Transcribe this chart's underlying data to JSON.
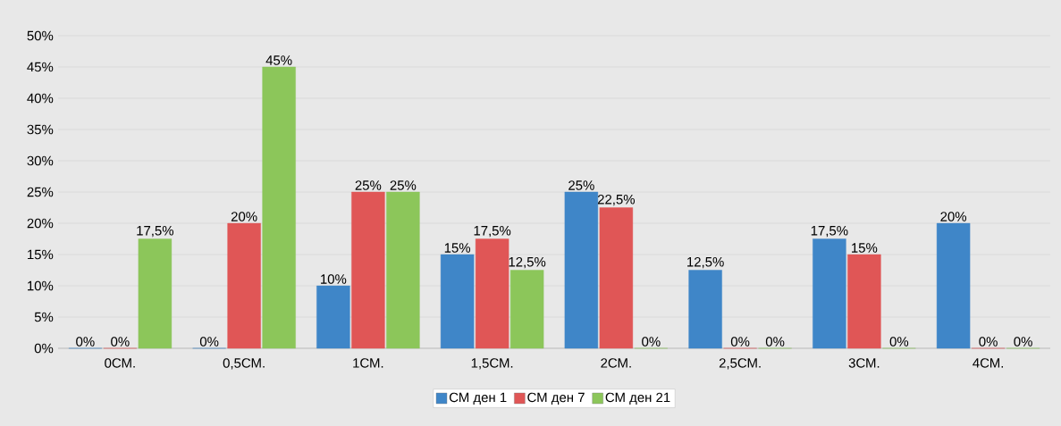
{
  "chart_data": {
    "type": "bar",
    "categories": [
      "0СМ.",
      "0,5СМ.",
      "1СМ.",
      "1,5СМ.",
      "2СМ.",
      "2,5СМ.",
      "3СМ.",
      "4СМ."
    ],
    "series": [
      {
        "name": "СМ ден 1",
        "color": "#3f86c8",
        "values": [
          0,
          0,
          10,
          15,
          25,
          12.5,
          17.5,
          20
        ],
        "value_labels": [
          "0%",
          "0%",
          "10%",
          "15%",
          "25%",
          "12,5%",
          "17,5%",
          "20%"
        ]
      },
      {
        "name": "СМ ден 7",
        "color": "#e05656",
        "values": [
          0,
          20,
          25,
          17.5,
          22.5,
          0,
          15,
          0
        ],
        "value_labels": [
          "0%",
          "20%",
          "25%",
          "17,5%",
          "22,5%",
          "0%",
          "15%",
          "0%"
        ]
      },
      {
        "name": "СМ ден 21",
        "color": "#8cc65a",
        "values": [
          17.5,
          45,
          25,
          12.5,
          0,
          0,
          0,
          0
        ],
        "value_labels": [
          "17,5%",
          "45%",
          "25%",
          "12,5%",
          "0%",
          "0%",
          "0%",
          "0%"
        ]
      }
    ],
    "ylim": [
      0,
      50
    ],
    "yticks": [
      {
        "value": 0,
        "label": "0%"
      },
      {
        "value": 5,
        "label": "5%"
      },
      {
        "value": 10,
        "label": "10%"
      },
      {
        "value": 15,
        "label": "15%"
      },
      {
        "value": 20,
        "label": "20%"
      },
      {
        "value": 25,
        "label": "25%"
      },
      {
        "value": 30,
        "label": "30%"
      },
      {
        "value": 35,
        "label": "35%"
      },
      {
        "value": 40,
        "label": "40%"
      },
      {
        "value": 45,
        "label": "45%"
      },
      {
        "value": 50,
        "label": "50%"
      }
    ],
    "grid": "y",
    "legend": "bottom"
  }
}
